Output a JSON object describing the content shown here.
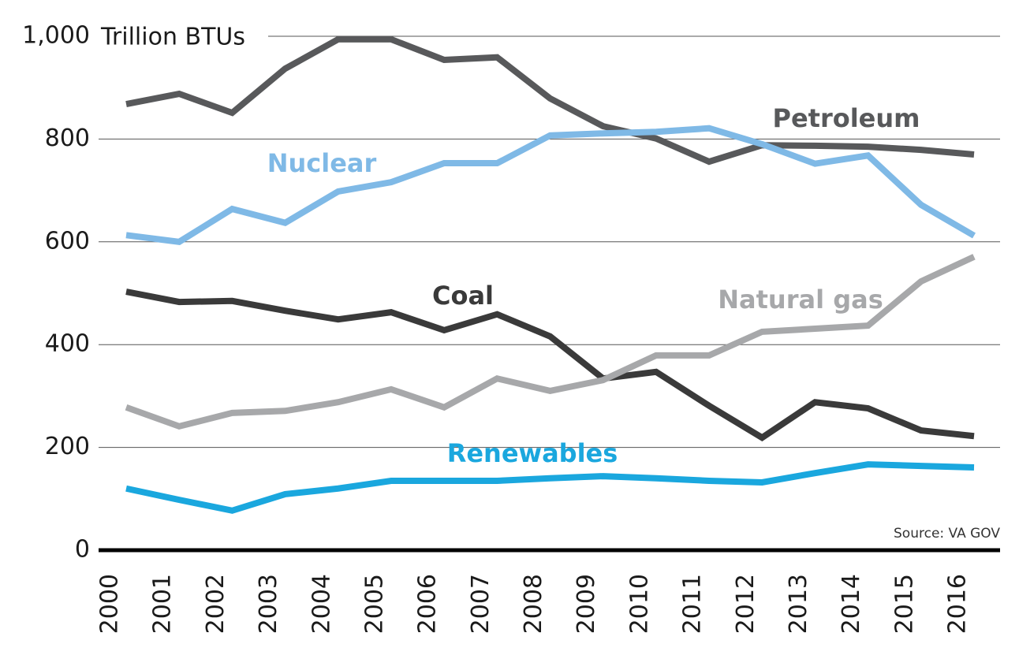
{
  "chart_data": {
    "type": "line",
    "y_label": "Trillion BTUs",
    "source": "Source: VA GOV",
    "categories": [
      "2000",
      "2001",
      "2002",
      "2003",
      "2004",
      "2005",
      "2006",
      "2007",
      "2008",
      "2009",
      "2010",
      "2011",
      "2012",
      "2013",
      "2014",
      "2015",
      "2016"
    ],
    "series": [
      {
        "name": "Petroleum",
        "color": "#58595b",
        "values": [
          868,
          888,
          851,
          937,
          994,
          994,
          954,
          959,
          879,
          825,
          801,
          756,
          788,
          787,
          785,
          779,
          770
        ]
      },
      {
        "name": "Nuclear",
        "color": "#7fb9e6",
        "values": [
          613,
          600,
          664,
          637,
          698,
          716,
          753,
          753,
          807,
          811,
          814,
          821,
          790,
          752,
          768,
          672,
          612
        ]
      },
      {
        "name": "Coal",
        "color": "#3a3a3a",
        "values": [
          503,
          483,
          485,
          466,
          449,
          463,
          428,
          459,
          416,
          334,
          347,
          281,
          219,
          288,
          276,
          233,
          222
        ]
      },
      {
        "name": "Natural gas",
        "color": "#a7a8aa",
        "values": [
          278,
          241,
          267,
          271,
          288,
          313,
          278,
          334,
          310,
          331,
          379,
          379,
          425,
          431,
          437,
          523,
          571
        ]
      },
      {
        "name": "Renewables",
        "color": "#1aa7de",
        "values": [
          120,
          98,
          77,
          109,
          120,
          135,
          135,
          135,
          140,
          144,
          140,
          135,
          132,
          150,
          167,
          164,
          161
        ]
      }
    ],
    "ylim": [
      0,
      1000
    ],
    "yticks": [
      0,
      200,
      400,
      600,
      800,
      {
        "value": 1000,
        "label": "1,000"
      }
    ],
    "grid": true
  }
}
